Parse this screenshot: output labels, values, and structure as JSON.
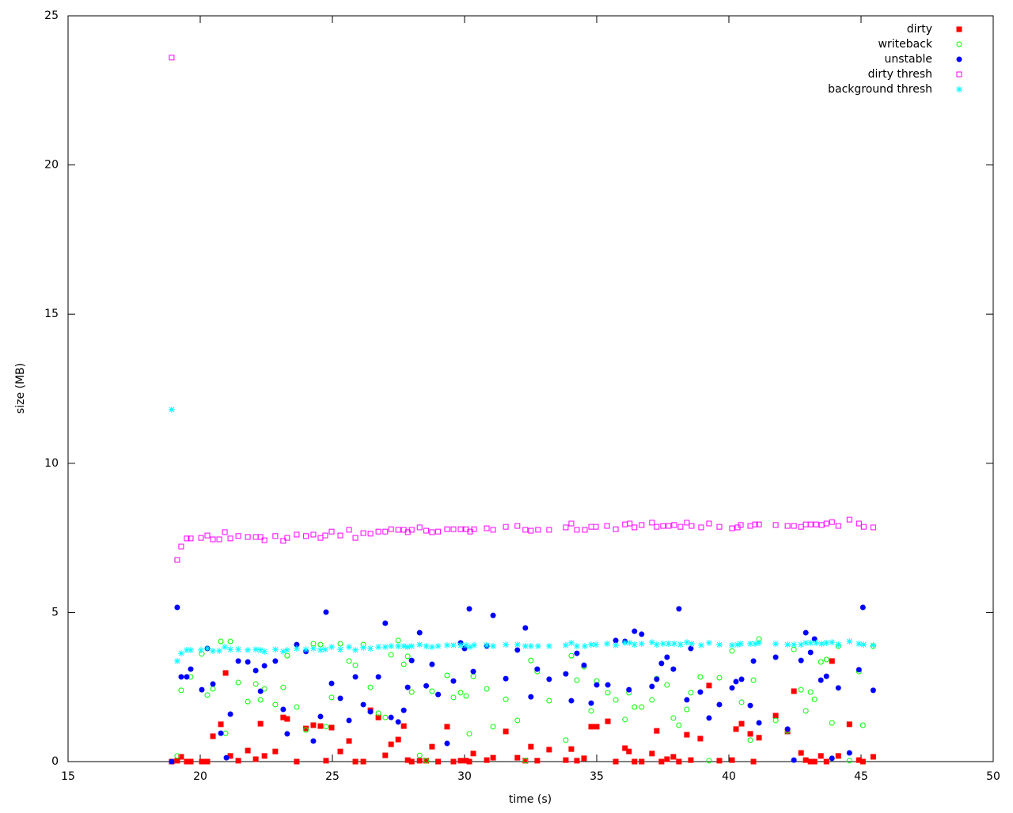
{
  "chart_data": {
    "type": "scatter",
    "x_label": "time (s)",
    "y_label": "size (MB)",
    "xlim": [
      15,
      50
    ],
    "ylim": [
      0,
      25
    ],
    "xticks": [
      15,
      20,
      25,
      30,
      35,
      40,
      45,
      50
    ],
    "yticks": [
      0,
      5,
      10,
      15,
      20,
      25
    ],
    "legend": "top-right",
    "series": [
      {
        "name": "dirty",
        "color": "#ff0000",
        "marker": "filled-square",
        "x": [
          18.92,
          19.13,
          19.28,
          19.49,
          19.64,
          20.06,
          20.27,
          20.48,
          20.78,
          20.96,
          21.14,
          21.44,
          21.8,
          22.1,
          22.28,
          22.43,
          22.84,
          23.14,
          23.29,
          23.65,
          24.0,
          24.28,
          24.55,
          24.76,
          24.97,
          25.3,
          25.63,
          25.87,
          26.17,
          26.44,
          26.74,
          27.0,
          27.22,
          27.49,
          27.7,
          27.85,
          28.0,
          28.3,
          28.55,
          28.77,
          29.0,
          29.34,
          29.58,
          29.85,
          30.06,
          30.18,
          30.33,
          30.84,
          31.08,
          31.56,
          32.0,
          32.3,
          32.51,
          32.75,
          33.2,
          33.83,
          34.04,
          34.25,
          34.52,
          34.79,
          35.0,
          35.42,
          35.72,
          36.07,
          36.22,
          36.43,
          36.7,
          37.09,
          37.27,
          37.45,
          37.66,
          37.9,
          38.11,
          38.41,
          38.56,
          38.92,
          39.25,
          39.64,
          40.12,
          40.27,
          40.48,
          40.81,
          40.93,
          41.14,
          41.77,
          42.22,
          42.46,
          42.73,
          42.91,
          43.09,
          43.24,
          43.48,
          43.69,
          43.9,
          44.14,
          44.56,
          44.92,
          45.07,
          45.46
        ],
        "values": [
          0,
          0.03,
          0.16,
          0,
          0,
          0,
          0,
          0.85,
          1.25,
          2.97,
          0.19,
          0.03,
          0.37,
          0.08,
          1.27,
          0.19,
          0.34,
          1.48,
          1.43,
          0,
          1.11,
          1.22,
          1.19,
          0.03,
          1.14,
          0.34,
          0.69,
          0,
          0,
          1.72,
          1.48,
          0.21,
          0.58,
          0.74,
          1.19,
          0.05,
          0,
          0.03,
          0.03,
          0.5,
          0,
          1.17,
          0,
          0.03,
          0.03,
          0,
          0.27,
          0.05,
          0.13,
          1.01,
          0.13,
          0.03,
          0.5,
          0.03,
          0.4,
          0.05,
          0.42,
          0.03,
          0.11,
          1.17,
          1.17,
          1.35,
          0,
          0.45,
          0.34,
          0,
          0,
          0.27,
          1.03,
          0,
          0.08,
          0.16,
          0,
          0.9,
          0.05,
          0.77,
          2.55,
          0.03,
          0.05,
          1.09,
          1.27,
          0.93,
          0,
          0.8,
          1.54,
          1.01,
          2.36,
          0.29,
          0.05,
          0,
          0,
          0.19,
          0,
          3.37,
          0.19,
          1.25,
          0.05,
          0,
          0.16
        ]
      },
      {
        "name": "writeback",
        "color": "#00ff00",
        "marker": "open-circle",
        "x": [
          19.13,
          19.28,
          19.64,
          20.06,
          20.27,
          20.48,
          20.78,
          20.96,
          21.14,
          21.44,
          21.8,
          22.1,
          22.28,
          22.43,
          22.84,
          23.14,
          23.29,
          23.65,
          24.0,
          24.28,
          24.55,
          24.76,
          24.97,
          25.3,
          25.63,
          25.87,
          26.17,
          26.44,
          26.74,
          27.0,
          27.22,
          27.49,
          27.7,
          27.85,
          28.0,
          28.3,
          28.55,
          28.77,
          29.34,
          29.58,
          29.85,
          30.06,
          30.18,
          30.33,
          30.84,
          31.08,
          31.56,
          32.0,
          32.3,
          32.51,
          32.75,
          33.2,
          33.83,
          34.04,
          34.25,
          34.52,
          34.79,
          35.0,
          35.42,
          35.72,
          36.07,
          36.22,
          36.43,
          36.7,
          37.09,
          37.27,
          37.66,
          37.9,
          38.11,
          38.41,
          38.56,
          38.92,
          39.25,
          39.64,
          40.12,
          40.48,
          40.81,
          40.93,
          41.14,
          41.77,
          42.22,
          42.46,
          42.73,
          42.91,
          43.09,
          43.24,
          43.48,
          43.69,
          43.9,
          44.14,
          44.56,
          44.92,
          45.07,
          45.46
        ],
        "values": [
          0.19,
          2.39,
          2.84,
          3.61,
          2.23,
          2.44,
          4.03,
          0.95,
          4.03,
          2.65,
          2.01,
          2.6,
          2.07,
          2.44,
          1.91,
          2.49,
          3.55,
          1.83,
          1.06,
          3.95,
          3.92,
          1.17,
          2.15,
          3.95,
          3.37,
          3.23,
          3.92,
          2.49,
          1.62,
          1.48,
          3.58,
          4.06,
          3.26,
          3.53,
          2.33,
          0.21,
          0.03,
          2.36,
          2.89,
          2.15,
          2.31,
          2.2,
          0.93,
          2.86,
          2.44,
          1.17,
          2.09,
          1.38,
          0.03,
          3.39,
          3.02,
          2.04,
          0.72,
          3.55,
          2.73,
          3.18,
          1.7,
          2.7,
          2.31,
          2.07,
          1.41,
          2.31,
          1.83,
          1.83,
          2.07,
          2.78,
          2.57,
          1.46,
          1.22,
          1.75,
          2.31,
          2.84,
          0.03,
          2.81,
          3.71,
          1.99,
          0.72,
          2.73,
          4.11,
          1.38,
          1.03,
          3.76,
          2.41,
          1.7,
          2.33,
          2.09,
          3.34,
          3.42,
          1.3,
          3.87,
          0.03,
          3.02,
          1.22,
          3.87
        ]
      },
      {
        "name": "unstable",
        "color": "#0000ff",
        "marker": "filled-circle",
        "x": [
          18.92,
          19.13,
          19.28,
          19.49,
          19.64,
          20.06,
          20.27,
          20.48,
          20.78,
          20.99,
          21.14,
          21.44,
          21.8,
          22.1,
          22.28,
          22.43,
          22.84,
          23.14,
          23.29,
          23.65,
          24.0,
          24.28,
          24.55,
          24.76,
          24.97,
          25.3,
          25.63,
          25.87,
          26.17,
          26.44,
          26.74,
          27.0,
          27.22,
          27.49,
          27.7,
          27.85,
          28.0,
          28.3,
          28.55,
          28.77,
          29.0,
          29.34,
          29.58,
          29.85,
          30.0,
          30.18,
          30.33,
          30.84,
          31.08,
          31.56,
          32.0,
          32.3,
          32.51,
          32.75,
          33.2,
          33.83,
          34.04,
          34.25,
          34.52,
          34.79,
          35.0,
          35.42,
          35.72,
          36.07,
          36.22,
          36.43,
          36.7,
          37.09,
          37.27,
          37.45,
          37.66,
          37.9,
          38.11,
          38.41,
          38.56,
          38.92,
          39.25,
          39.64,
          40.12,
          40.27,
          40.48,
          40.81,
          40.93,
          41.14,
          41.77,
          42.22,
          42.46,
          42.73,
          42.91,
          43.09,
          43.24,
          43.48,
          43.69,
          43.9,
          44.14,
          44.56,
          44.92,
          45.07,
          45.46
        ],
        "values": [
          0,
          5.17,
          2.84,
          2.84,
          3.1,
          2.41,
          3.79,
          2.6,
          0.95,
          0.13,
          1.59,
          3.37,
          3.34,
          3.05,
          2.36,
          3.21,
          3.37,
          1.75,
          0.93,
          3.92,
          3.69,
          0.69,
          1.51,
          5.01,
          2.62,
          2.12,
          1.38,
          2.84,
          1.91,
          1.67,
          2.84,
          4.64,
          1.48,
          1.33,
          1.72,
          2.49,
          3.39,
          4.32,
          2.54,
          3.26,
          2.25,
          0.61,
          2.7,
          3.98,
          3.79,
          5.12,
          3.02,
          3.87,
          4.9,
          2.78,
          3.74,
          4.48,
          2.17,
          3.1,
          2.76,
          2.94,
          2.04,
          3.63,
          3.23,
          1.96,
          2.57,
          2.57,
          4.06,
          4.03,
          2.41,
          4.37,
          4.27,
          2.52,
          2.76,
          3.29,
          3.5,
          3.1,
          5.12,
          2.07,
          3.79,
          2.33,
          1.46,
          1.91,
          2.47,
          2.68,
          2.76,
          1.88,
          3.37,
          1.3,
          3.5,
          1.09,
          0.05,
          3.39,
          4.32,
          3.66,
          4.11,
          2.73,
          2.86,
          0.11,
          2.47,
          0.29,
          3.08,
          5.17,
          2.39
        ]
      },
      {
        "name": "dirty thresh",
        "color": "#ff00ff",
        "marker": "open-square",
        "x": [
          18.92,
          19.13,
          19.28,
          19.49,
          19.64,
          20.03,
          20.27,
          20.48,
          20.72,
          20.93,
          21.14,
          21.44,
          21.8,
          22.1,
          22.28,
          22.43,
          22.84,
          23.14,
          23.29,
          23.65,
          24.0,
          24.28,
          24.55,
          24.73,
          24.97,
          25.3,
          25.63,
          25.87,
          26.17,
          26.44,
          26.74,
          27.0,
          27.22,
          27.49,
          27.7,
          27.85,
          28.0,
          28.3,
          28.55,
          28.77,
          29.0,
          29.34,
          29.58,
          29.85,
          30.06,
          30.21,
          30.36,
          30.84,
          31.08,
          31.56,
          32.0,
          32.3,
          32.51,
          32.78,
          33.2,
          33.83,
          34.04,
          34.25,
          34.55,
          34.79,
          34.97,
          35.39,
          35.72,
          36.07,
          36.25,
          36.43,
          36.7,
          37.09,
          37.27,
          37.51,
          37.72,
          37.93,
          38.17,
          38.41,
          38.59,
          38.95,
          39.25,
          39.64,
          40.12,
          40.33,
          40.45,
          40.81,
          40.99,
          41.14,
          41.77,
          42.22,
          42.46,
          42.73,
          42.91,
          43.09,
          43.3,
          43.51,
          43.69,
          43.9,
          44.14,
          44.56,
          44.92,
          45.1,
          45.46
        ],
        "values": [
          23.6,
          6.76,
          7.21,
          7.48,
          7.48,
          7.5,
          7.58,
          7.45,
          7.45,
          7.69,
          7.48,
          7.56,
          7.53,
          7.53,
          7.53,
          7.42,
          7.56,
          7.4,
          7.5,
          7.61,
          7.56,
          7.61,
          7.5,
          7.58,
          7.71,
          7.58,
          7.77,
          7.5,
          7.66,
          7.64,
          7.71,
          7.71,
          7.79,
          7.77,
          7.77,
          7.69,
          7.77,
          7.85,
          7.74,
          7.69,
          7.71,
          7.79,
          7.79,
          7.79,
          7.79,
          7.71,
          7.79,
          7.82,
          7.77,
          7.87,
          7.9,
          7.77,
          7.74,
          7.77,
          7.77,
          7.85,
          7.98,
          7.77,
          7.77,
          7.87,
          7.87,
          7.9,
          7.79,
          7.95,
          7.98,
          7.85,
          7.93,
          8.01,
          7.87,
          7.9,
          7.9,
          7.93,
          7.87,
          8.01,
          7.9,
          7.85,
          7.98,
          7.87,
          7.82,
          7.85,
          7.93,
          7.9,
          7.95,
          7.95,
          7.93,
          7.9,
          7.9,
          7.87,
          7.95,
          7.95,
          7.95,
          7.93,
          7.98,
          8.03,
          7.9,
          8.11,
          7.98,
          7.87,
          7.85
        ]
      },
      {
        "name": "background thresh",
        "color": "#00ffff",
        "marker": "star",
        "x": [
          18.92,
          19.13,
          19.28,
          19.49,
          19.64,
          20.03,
          20.27,
          20.48,
          20.72,
          20.93,
          21.14,
          21.44,
          21.8,
          22.1,
          22.28,
          22.43,
          22.84,
          23.14,
          23.29,
          23.65,
          24.0,
          24.28,
          24.55,
          24.73,
          24.97,
          25.3,
          25.63,
          25.87,
          26.17,
          26.44,
          26.74,
          27.0,
          27.22,
          27.49,
          27.7,
          27.85,
          28.0,
          28.3,
          28.55,
          28.77,
          29.0,
          29.34,
          29.58,
          29.85,
          30.06,
          30.21,
          30.36,
          30.84,
          31.08,
          31.56,
          32.0,
          32.3,
          32.51,
          32.78,
          33.2,
          33.83,
          34.04,
          34.25,
          34.55,
          34.79,
          34.97,
          35.39,
          35.72,
          36.07,
          36.25,
          36.43,
          36.7,
          37.09,
          37.27,
          37.51,
          37.72,
          37.93,
          38.17,
          38.41,
          38.59,
          38.95,
          39.25,
          39.64,
          40.12,
          40.33,
          40.45,
          40.81,
          40.99,
          41.14,
          41.77,
          42.22,
          42.46,
          42.73,
          42.91,
          43.09,
          43.3,
          43.51,
          43.69,
          43.9,
          44.14,
          44.56,
          44.92,
          45.1,
          45.46
        ],
        "values": [
          11.8,
          3.37,
          3.63,
          3.74,
          3.74,
          3.74,
          3.79,
          3.71,
          3.71,
          3.84,
          3.76,
          3.76,
          3.74,
          3.76,
          3.74,
          3.69,
          3.76,
          3.69,
          3.74,
          3.79,
          3.76,
          3.79,
          3.74,
          3.76,
          3.84,
          3.76,
          3.84,
          3.74,
          3.82,
          3.79,
          3.84,
          3.84,
          3.87,
          3.87,
          3.87,
          3.84,
          3.87,
          3.92,
          3.87,
          3.84,
          3.87,
          3.9,
          3.9,
          3.9,
          3.9,
          3.84,
          3.9,
          3.9,
          3.87,
          3.92,
          3.92,
          3.87,
          3.87,
          3.87,
          3.87,
          3.9,
          3.98,
          3.87,
          3.87,
          3.92,
          3.92,
          3.95,
          3.9,
          3.98,
          3.98,
          3.92,
          3.95,
          4.0,
          3.92,
          3.95,
          3.95,
          3.95,
          3.92,
          4.0,
          3.95,
          3.9,
          3.98,
          3.92,
          3.9,
          3.92,
          3.95,
          3.95,
          3.95,
          3.98,
          3.95,
          3.92,
          3.92,
          3.92,
          3.98,
          3.98,
          3.98,
          3.95,
          3.98,
          4.0,
          3.92,
          4.03,
          3.95,
          3.92,
          3.9
        ]
      }
    ]
  }
}
